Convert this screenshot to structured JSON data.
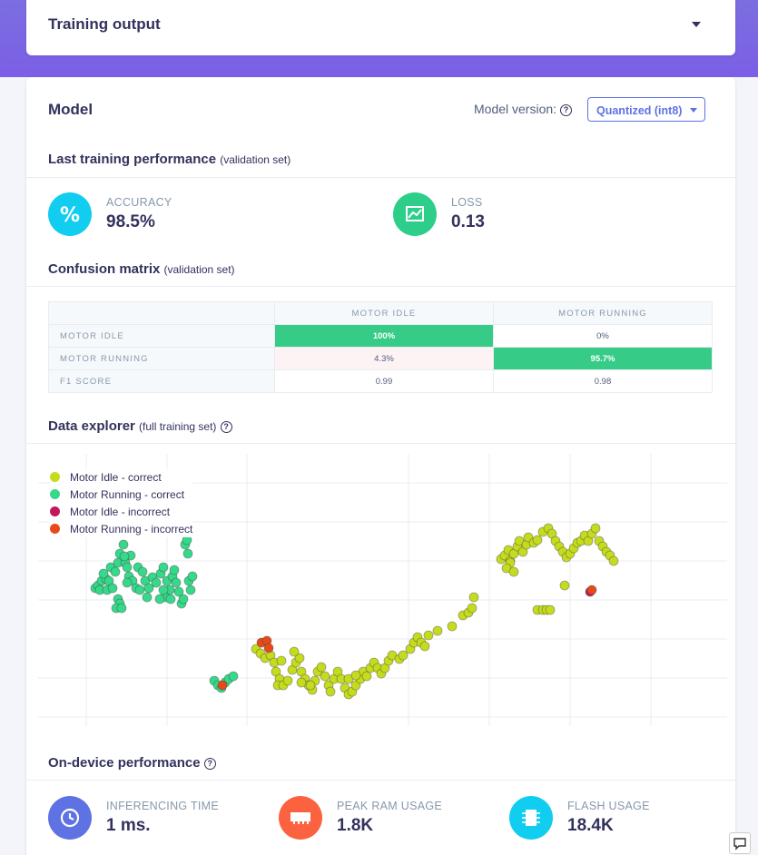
{
  "training_output": {
    "title": "Training output",
    "toggle_icon": "caret-down-icon"
  },
  "model": {
    "title": "Model",
    "version_label": "Model version:",
    "version_selected": "Quantized (int8)"
  },
  "last_training": {
    "title": "Last training performance",
    "subtitle": "(validation set)",
    "accuracy": {
      "label": "ACCURACY",
      "value": "98.5%",
      "icon": "percent-icon",
      "color": "#11cdef"
    },
    "loss": {
      "label": "LOSS",
      "value": "0.13",
      "icon": "trend-chart-icon",
      "color": "#2dce89"
    }
  },
  "confusion_matrix": {
    "title": "Confusion matrix",
    "subtitle": "(validation set)",
    "columns": [
      "MOTOR IDLE",
      "MOTOR RUNNING"
    ],
    "rows": [
      {
        "label": "MOTOR IDLE",
        "cells": [
          "100%",
          "0%"
        ]
      },
      {
        "label": "MOTOR RUNNING",
        "cells": [
          "4.3%",
          "95.7%"
        ]
      },
      {
        "label": "F1 SCORE",
        "cells": [
          "0.99",
          "0.98"
        ]
      }
    ]
  },
  "data_explorer": {
    "title": "Data explorer",
    "subtitle": "(full training set)",
    "legend": [
      {
        "label": "Motor Idle - correct",
        "color": "#c5dc1e"
      },
      {
        "label": "Motor Running - correct",
        "color": "#36d88a"
      },
      {
        "label": "Motor Idle - incorrect",
        "color": "#c2185b"
      },
      {
        "label": "Motor Running - incorrect",
        "color": "#e64a19"
      }
    ]
  },
  "chart_data": {
    "type": "scatter",
    "title": "",
    "xlabel": "",
    "ylabel": "",
    "grid": true,
    "legend_position": "top-left",
    "series": [
      {
        "name": "Motor Running - correct",
        "color": "#36d88a",
        "points": [
          [
            63,
            148
          ],
          [
            66,
            145
          ],
          [
            70,
            140
          ],
          [
            68,
            150
          ],
          [
            75,
            138
          ],
          [
            72,
            132
          ],
          [
            80,
            125
          ],
          [
            78,
            140
          ],
          [
            85,
            130
          ],
          [
            88,
            120
          ],
          [
            90,
            110
          ],
          [
            94,
            100
          ],
          [
            96,
            120
          ],
          [
            100,
            135
          ],
          [
            104,
            140
          ],
          [
            108,
            148
          ],
          [
            110,
            125
          ],
          [
            115,
            130
          ],
          [
            118,
            140
          ],
          [
            122,
            148
          ],
          [
            126,
            136
          ],
          [
            130,
            142
          ],
          [
            135,
            132
          ],
          [
            138,
            125
          ],
          [
            142,
            140
          ],
          [
            145,
            150
          ],
          [
            148,
            135
          ],
          [
            150,
            128
          ],
          [
            152,
            142
          ],
          [
            155,
            152
          ],
          [
            158,
            165
          ],
          [
            160,
            160
          ],
          [
            162,
            100
          ],
          [
            164,
            95
          ],
          [
            165,
            110
          ],
          [
            166,
            140
          ],
          [
            168,
            150
          ],
          [
            170,
            135
          ],
          [
            88,
            160
          ],
          [
            90,
            165
          ],
          [
            86,
            170
          ],
          [
            92,
            170
          ],
          [
            76,
            150
          ],
          [
            82,
            148
          ],
          [
            98,
            142
          ],
          [
            112,
            150
          ],
          [
            120,
            158
          ],
          [
            140,
            158
          ],
          [
            146,
            160
          ],
          [
            102,
            112
          ],
          [
            95,
            113
          ],
          [
            98,
            125
          ],
          [
            138,
            150
          ],
          [
            134,
            160
          ],
          [
            194,
            250
          ],
          [
            198,
            255
          ],
          [
            202,
            258
          ],
          [
            206,
            252
          ],
          [
            210,
            248
          ],
          [
            215,
            245
          ]
        ]
      },
      {
        "name": "Motor Idle - correct",
        "color": "#c5dc1e",
        "points": [
          [
            240,
            215
          ],
          [
            245,
            220
          ],
          [
            250,
            225
          ],
          [
            256,
            222
          ],
          [
            260,
            230
          ],
          [
            262,
            240
          ],
          [
            266,
            248
          ],
          [
            264,
            255
          ],
          [
            270,
            255
          ],
          [
            275,
            250
          ],
          [
            280,
            238
          ],
          [
            284,
            230
          ],
          [
            288,
            225
          ],
          [
            290,
            240
          ],
          [
            294,
            248
          ],
          [
            298,
            255
          ],
          [
            302,
            260
          ],
          [
            305,
            250
          ],
          [
            308,
            240
          ],
          [
            312,
            235
          ],
          [
            316,
            245
          ],
          [
            320,
            255
          ],
          [
            322,
            262
          ],
          [
            326,
            248
          ],
          [
            330,
            240
          ],
          [
            334,
            248
          ],
          [
            338,
            258
          ],
          [
            342,
            265
          ],
          [
            346,
            262
          ],
          [
            350,
            255
          ],
          [
            355,
            248
          ],
          [
            358,
            240
          ],
          [
            362,
            245
          ],
          [
            366,
            236
          ],
          [
            370,
            230
          ],
          [
            374,
            236
          ],
          [
            378,
            242
          ],
          [
            382,
            236
          ],
          [
            386,
            228
          ],
          [
            390,
            222
          ],
          [
            398,
            226
          ],
          [
            402,
            222
          ],
          [
            410,
            215
          ],
          [
            414,
            208
          ],
          [
            418,
            202
          ],
          [
            422,
            208
          ],
          [
            426,
            212
          ],
          [
            430,
            200
          ],
          [
            440,
            195
          ],
          [
            456,
            190
          ],
          [
            468,
            178
          ],
          [
            474,
            175
          ],
          [
            478,
            170
          ],
          [
            480,
            158
          ],
          [
            510,
            116
          ],
          [
            514,
            112
          ],
          [
            518,
            106
          ],
          [
            520,
            118
          ],
          [
            524,
            110
          ],
          [
            528,
            102
          ],
          [
            530,
            96
          ],
          [
            534,
            108
          ],
          [
            538,
            100
          ],
          [
            540,
            92
          ],
          [
            546,
            98
          ],
          [
            550,
            95
          ],
          [
            556,
            86
          ],
          [
            562,
            82
          ],
          [
            566,
            88
          ],
          [
            570,
            96
          ],
          [
            574,
            102
          ],
          [
            578,
            108
          ],
          [
            582,
            114
          ],
          [
            586,
            110
          ],
          [
            590,
            104
          ],
          [
            594,
            98
          ],
          [
            598,
            96
          ],
          [
            602,
            90
          ],
          [
            606,
            96
          ],
          [
            610,
            88
          ],
          [
            614,
            82
          ],
          [
            618,
            96
          ],
          [
            622,
            102
          ],
          [
            626,
            108
          ],
          [
            630,
            112
          ],
          [
            634,
            118
          ],
          [
            520,
            120
          ],
          [
            516,
            126
          ],
          [
            524,
            130
          ],
          [
            550,
            172
          ],
          [
            556,
            172
          ],
          [
            560,
            172
          ],
          [
            564,
            172
          ],
          [
            580,
            145
          ],
          [
            342,
            248
          ],
          [
            350,
            244
          ],
          [
            300,
            255
          ],
          [
            290,
            252
          ],
          [
            282,
            218
          ],
          [
            268,
            228
          ]
        ]
      },
      {
        "name": "Motor Idle - incorrect",
        "color": "#c2185b",
        "points": [
          [
            608,
            152
          ]
        ]
      },
      {
        "name": "Motor Running - incorrect",
        "color": "#e64a19",
        "points": [
          [
            203,
            255
          ],
          [
            246,
            208
          ],
          [
            252,
            206
          ],
          [
            254,
            214
          ],
          [
            610,
            150
          ]
        ]
      }
    ]
  },
  "on_device": {
    "title": "On-device performance",
    "inferencing": {
      "label": "INFERENCING TIME",
      "value": "1 ms.",
      "icon": "clock-icon",
      "color": "#5e72e4"
    },
    "ram": {
      "label": "PEAK RAM USAGE",
      "value": "1.8K",
      "icon": "memory-icon",
      "color": "#fb6340"
    },
    "flash": {
      "label": "FLASH USAGE",
      "value": "18.4K",
      "icon": "chip-icon",
      "color": "#11cdef"
    }
  },
  "feedback_icon": "feedback-icon"
}
